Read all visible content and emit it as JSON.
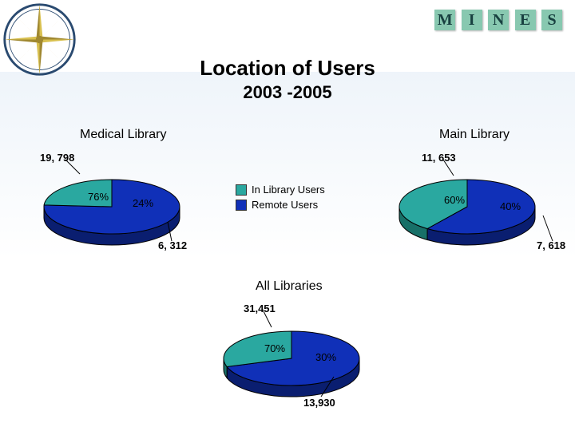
{
  "title": "Location of Users",
  "subtitle": "2003 -2005",
  "logo_letters": [
    "M",
    "I",
    "N",
    "E",
    "S"
  ],
  "logo_bg": "#88c8b0",
  "logo_fg": "#184040",
  "legend": {
    "in_library": "In Library Users",
    "remote": "Remote Users"
  },
  "colors": {
    "in_library": "#2aa8a0",
    "remote": "#1030b8",
    "side": "#0a1e70",
    "side2": "#187068",
    "outline": "#000000"
  },
  "charts": {
    "medical": {
      "title": "Medical Library",
      "type": "pie3d",
      "slices": [
        {
          "key": "remote",
          "pct": 76,
          "pct_label": "76%",
          "value_label": "19, 798"
        },
        {
          "key": "in_library",
          "pct": 24,
          "pct_label": "24%",
          "value_label": "6, 312"
        }
      ]
    },
    "main": {
      "title": "Main Library",
      "type": "pie3d",
      "slices": [
        {
          "key": "remote",
          "pct": 60,
          "pct_label": "60%",
          "value_label": "11, 653"
        },
        {
          "key": "in_library",
          "pct": 40,
          "pct_label": "40%",
          "value_label": "7, 618"
        }
      ]
    },
    "all": {
      "title": "All Libraries",
      "type": "pie3d",
      "slices": [
        {
          "key": "remote",
          "pct": 70,
          "pct_label": "70%",
          "value_label": "31,451"
        },
        {
          "key": "in_library",
          "pct": 30,
          "pct_label": "30%",
          "value_label": "13,930"
        }
      ]
    }
  },
  "layout": {
    "pie_rx": 85,
    "pie_ry": 34,
    "pie_depth": 14
  }
}
